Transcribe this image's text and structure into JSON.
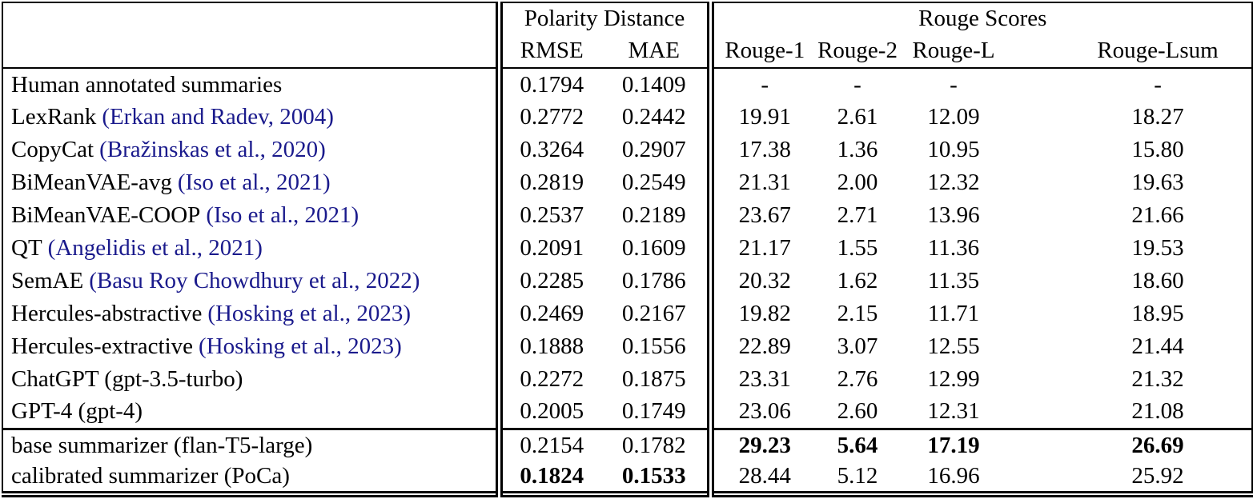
{
  "colors": {
    "text": "#000000",
    "citation_link": "#1a1a8c",
    "border": "#000000",
    "background": "#ffffff"
  },
  "table": {
    "group_headers": {
      "polarity": "Polarity Distance",
      "rouge": "Rouge Scores"
    },
    "sub_headers": [
      "RMSE",
      "MAE",
      "Rouge-1",
      "Rouge-2",
      "Rouge-L",
      "Rouge-Lsum"
    ],
    "rows": [
      {
        "label": "Human annotated summaries",
        "citation": "",
        "rmse": "0.1794",
        "mae": "0.1409",
        "rouge": [
          "-",
          "-",
          "-",
          "-"
        ],
        "bold_polarity": false,
        "bold_rouge": false
      },
      {
        "label": "LexRank",
        "citation": "(Erkan and Radev, 2004)",
        "rmse": "0.2772",
        "mae": "0.2442",
        "rouge": [
          "19.91",
          "2.61",
          "12.09",
          "18.27"
        ],
        "bold_polarity": false,
        "bold_rouge": false
      },
      {
        "label": "CopyCat",
        "citation": "(Bražinskas et al., 2020)",
        "rmse": "0.3264",
        "mae": "0.2907",
        "rouge": [
          "17.38",
          "1.36",
          "10.95",
          "15.80"
        ],
        "bold_polarity": false,
        "bold_rouge": false
      },
      {
        "label": "BiMeanVAE-avg",
        "citation": "(Iso et al., 2021)",
        "rmse": "0.2819",
        "mae": "0.2549",
        "rouge": [
          "21.31",
          "2.00",
          "12.32",
          "19.63"
        ],
        "bold_polarity": false,
        "bold_rouge": false
      },
      {
        "label": "BiMeanVAE-COOP",
        "citation": "(Iso et al., 2021)",
        "rmse": "0.2537",
        "mae": "0.2189",
        "rouge": [
          "23.67",
          "2.71",
          "13.96",
          "21.66"
        ],
        "bold_polarity": false,
        "bold_rouge": false
      },
      {
        "label": "QT",
        "citation": "(Angelidis et al., 2021)",
        "rmse": "0.2091",
        "mae": "0.1609",
        "rouge": [
          "21.17",
          "1.55",
          "11.36",
          "19.53"
        ],
        "bold_polarity": false,
        "bold_rouge": false
      },
      {
        "label": "SemAE",
        "citation": "(Basu Roy Chowdhury et al., 2022)",
        "rmse": "0.2285",
        "mae": "0.1786",
        "rouge": [
          "20.32",
          "1.62",
          "11.35",
          "18.60"
        ],
        "bold_polarity": false,
        "bold_rouge": false
      },
      {
        "label": "Hercules-abstractive",
        "citation": "(Hosking et al., 2023)",
        "rmse": "0.2469",
        "mae": "0.2167",
        "rouge": [
          "19.82",
          "2.15",
          "11.71",
          "18.95"
        ],
        "bold_polarity": false,
        "bold_rouge": false
      },
      {
        "label": "Hercules-extractive",
        "citation": "(Hosking et al., 2023)",
        "rmse": "0.1888",
        "mae": "0.1556",
        "rouge": [
          "22.89",
          "3.07",
          "12.55",
          "21.44"
        ],
        "bold_polarity": false,
        "bold_rouge": false
      },
      {
        "label": "ChatGPT (gpt-3.5-turbo)",
        "citation": "",
        "rmse": "0.2272",
        "mae": "0.1875",
        "rouge": [
          "23.31",
          "2.76",
          "12.99",
          "21.32"
        ],
        "bold_polarity": false,
        "bold_rouge": false
      },
      {
        "label": "GPT-4 (gpt-4)",
        "citation": "",
        "rmse": "0.2005",
        "mae": "0.1749",
        "rouge": [
          "23.06",
          "2.60",
          "12.31",
          "21.08"
        ],
        "bold_polarity": false,
        "bold_rouge": false
      },
      {
        "label": "base summarizer (flan-T5-large)",
        "citation": "",
        "rmse": "0.2154",
        "mae": "0.1782",
        "rouge": [
          "29.23",
          "5.64",
          "17.19",
          "26.69"
        ],
        "bold_polarity": false,
        "bold_rouge": true,
        "section_start": true
      },
      {
        "label": "calibrated summarizer (PoCa)",
        "citation": "",
        "rmse": "0.1824",
        "mae": "0.1533",
        "rouge": [
          "28.44",
          "5.12",
          "16.96",
          "25.92"
        ],
        "bold_polarity": true,
        "bold_rouge": false
      }
    ]
  }
}
